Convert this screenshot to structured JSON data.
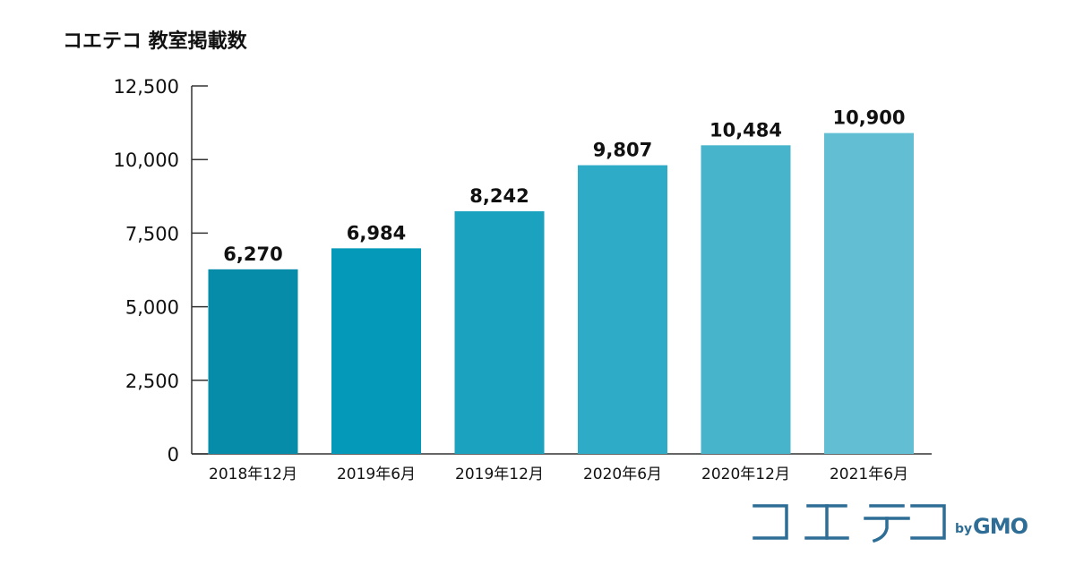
{
  "chart_data": {
    "type": "bar",
    "title": "コエテコ 教室掲載数",
    "xlabel": "",
    "ylabel": "",
    "categories": [
      "2018年12月",
      "2019年6月",
      "2019年12月",
      "2020年6月",
      "2020年12月",
      "2021年6月"
    ],
    "values": [
      6270,
      6984,
      8242,
      9807,
      10484,
      10900
    ],
    "value_labels": [
      "6,270",
      "6,984",
      "8,242",
      "9,807",
      "10,484",
      "10,900"
    ],
    "ylim": [
      0,
      12500
    ],
    "yticks": [
      0,
      2500,
      5000,
      7500,
      10000,
      12500
    ],
    "ytick_labels": [
      "0",
      "2,500",
      "5,000",
      "7,500",
      "10,000",
      "12,500"
    ],
    "bar_colors": [
      "#068ba9",
      "#0599b9",
      "#1aa2bf",
      "#2eacc7",
      "#48b4cb",
      "#62bfd3"
    ],
    "grid": false,
    "legend": "none"
  },
  "logo": {
    "name": "コエテコ",
    "by": "by",
    "brand": "GMO",
    "color": "#2e6d95"
  }
}
